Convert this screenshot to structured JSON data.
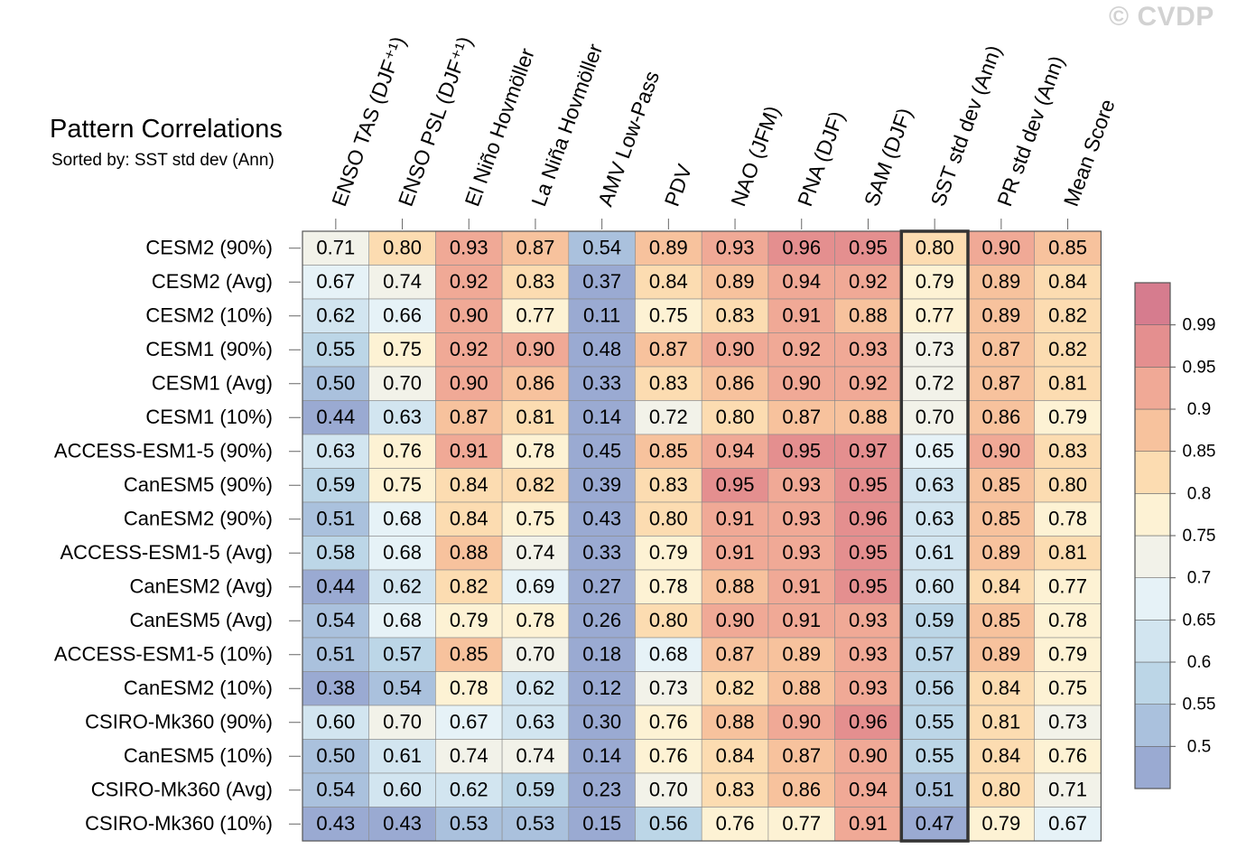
{
  "title": "Pattern Correlations",
  "subtitle": "Sorted by: SST std dev (Ann)",
  "watermark": "© CVDP",
  "chart_data": {
    "type": "heatmap",
    "columns": [
      "ENSO TAS (DJF⁺¹)",
      "ENSO PSL (DJF⁺¹)",
      "El Niño Hovmöller",
      "La Niña Hovmöller",
      "AMV Low-Pass",
      "PDV",
      "NAO (JFM)",
      "PNA (DJF)",
      "SAM (DJF)",
      "SST std dev (Ann)",
      "PR std dev (Ann)",
      "Mean Score"
    ],
    "highlighted_column": "SST std dev (Ann)",
    "rows": [
      "CESM2 (90%)",
      "CESM2 (Avg)",
      "CESM2 (10%)",
      "CESM1 (90%)",
      "CESM1 (Avg)",
      "CESM1 (10%)",
      "ACCESS-ESM1-5 (90%)",
      "CanESM5 (90%)",
      "CanESM2 (90%)",
      "ACCESS-ESM1-5 (Avg)",
      "CanESM2 (Avg)",
      "CanESM5 (Avg)",
      "ACCESS-ESM1-5 (10%)",
      "CanESM2 (10%)",
      "CSIRO-Mk360 (90%)",
      "CanESM5 (10%)",
      "CSIRO-Mk360 (Avg)",
      "CSIRO-Mk360 (10%)"
    ],
    "values": [
      [
        "0.71",
        "0.80",
        "0.93",
        "0.87",
        "0.54",
        "0.89",
        "0.93",
        "0.96",
        "0.95",
        "0.80",
        "0.90",
        "0.85"
      ],
      [
        "0.67",
        "0.74",
        "0.92",
        "0.83",
        "0.37",
        "0.84",
        "0.89",
        "0.94",
        "0.92",
        "0.79",
        "0.89",
        "0.84"
      ],
      [
        "0.62",
        "0.66",
        "0.90",
        "0.77",
        "0.11",
        "0.75",
        "0.83",
        "0.91",
        "0.88",
        "0.77",
        "0.89",
        "0.82"
      ],
      [
        "0.55",
        "0.75",
        "0.92",
        "0.90",
        "0.48",
        "0.87",
        "0.90",
        "0.92",
        "0.93",
        "0.73",
        "0.87",
        "0.82"
      ],
      [
        "0.50",
        "0.70",
        "0.90",
        "0.86",
        "0.33",
        "0.83",
        "0.86",
        "0.90",
        "0.92",
        "0.72",
        "0.87",
        "0.81"
      ],
      [
        "0.44",
        "0.63",
        "0.87",
        "0.81",
        "0.14",
        "0.72",
        "0.80",
        "0.87",
        "0.88",
        "0.70",
        "0.86",
        "0.79"
      ],
      [
        "0.63",
        "0.76",
        "0.91",
        "0.78",
        "0.45",
        "0.85",
        "0.94",
        "0.95",
        "0.97",
        "0.65",
        "0.90",
        "0.83"
      ],
      [
        "0.59",
        "0.75",
        "0.84",
        "0.82",
        "0.39",
        "0.83",
        "0.95",
        "0.93",
        "0.95",
        "0.63",
        "0.85",
        "0.80"
      ],
      [
        "0.51",
        "0.68",
        "0.84",
        "0.75",
        "0.43",
        "0.80",
        "0.91",
        "0.93",
        "0.96",
        "0.63",
        "0.85",
        "0.78"
      ],
      [
        "0.58",
        "0.68",
        "0.88",
        "0.74",
        "0.33",
        "0.79",
        "0.91",
        "0.93",
        "0.95",
        "0.61",
        "0.89",
        "0.81"
      ],
      [
        "0.44",
        "0.62",
        "0.82",
        "0.69",
        "0.27",
        "0.78",
        "0.88",
        "0.91",
        "0.95",
        "0.60",
        "0.84",
        "0.77"
      ],
      [
        "0.54",
        "0.68",
        "0.79",
        "0.78",
        "0.26",
        "0.80",
        "0.90",
        "0.91",
        "0.93",
        "0.59",
        "0.85",
        "0.78"
      ],
      [
        "0.51",
        "0.57",
        "0.85",
        "0.70",
        "0.18",
        "0.68",
        "0.87",
        "0.89",
        "0.93",
        "0.57",
        "0.89",
        "0.79"
      ],
      [
        "0.38",
        "0.54",
        "0.78",
        "0.62",
        "0.12",
        "0.73",
        "0.82",
        "0.88",
        "0.93",
        "0.56",
        "0.84",
        "0.75"
      ],
      [
        "0.60",
        "0.70",
        "0.67",
        "0.63",
        "0.30",
        "0.76",
        "0.88",
        "0.90",
        "0.96",
        "0.55",
        "0.81",
        "0.73"
      ],
      [
        "0.50",
        "0.61",
        "0.74",
        "0.74",
        "0.14",
        "0.76",
        "0.84",
        "0.87",
        "0.90",
        "0.55",
        "0.84",
        "0.76"
      ],
      [
        "0.54",
        "0.60",
        "0.62",
        "0.59",
        "0.23",
        "0.70",
        "0.83",
        "0.86",
        "0.94",
        "0.51",
        "0.80",
        "0.71"
      ],
      [
        "0.43",
        "0.43",
        "0.53",
        "0.53",
        "0.15",
        "0.56",
        "0.76",
        "0.77",
        "0.91",
        "0.47",
        "0.79",
        "0.67"
      ]
    ],
    "colorbar": {
      "levels": [
        0.5,
        0.55,
        0.6,
        0.65,
        0.7,
        0.75,
        0.8,
        0.85,
        0.9,
        0.95,
        0.99
      ],
      "labels": [
        "0.5",
        "0.55",
        "0.6",
        "0.65",
        "0.7",
        "0.75",
        "0.8",
        "0.85",
        "0.9",
        "0.95",
        "0.99"
      ],
      "colors": [
        "#9aaad2",
        "#aac1dd",
        "#bcd6e7",
        "#d2e5f0",
        "#e6f2f7",
        "#f2f2e9",
        "#fdf2d4",
        "#fcdcb1",
        "#f7c29d",
        "#f0a996",
        "#e48f8f",
        "#d67c8e"
      ]
    }
  }
}
